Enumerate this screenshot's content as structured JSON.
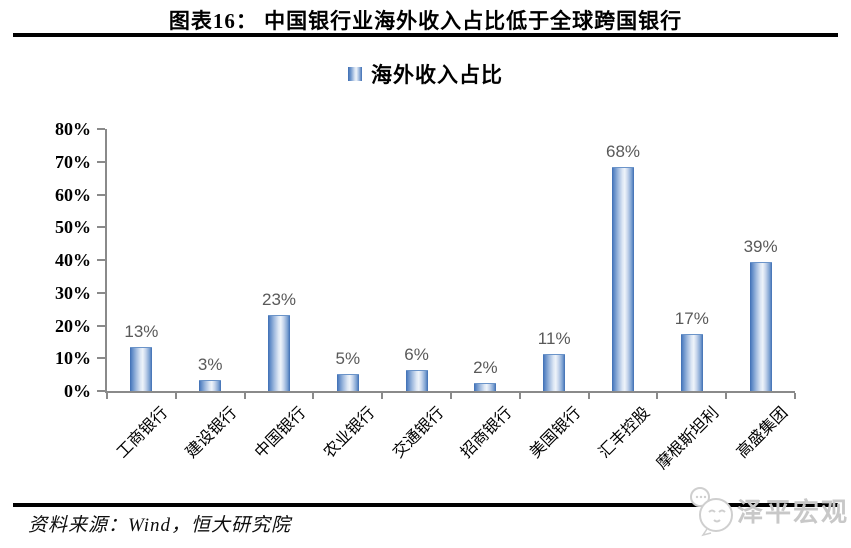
{
  "header": {
    "title": "图表16： 中国银行业海外收入占比低于全球跨国银行"
  },
  "chart_data": {
    "type": "bar",
    "title": "海外收入占比",
    "legend": [
      "海外收入占比"
    ],
    "legend_position": "top",
    "categories": [
      "工商银行",
      "建设银行",
      "中国银行",
      "农业银行",
      "交通银行",
      "招商银行",
      "美国银行",
      "汇丰控股",
      "摩根斯坦利",
      "高盛集团"
    ],
    "values": [
      13,
      3,
      23,
      5,
      6,
      2,
      11,
      68,
      17,
      39
    ],
    "data_labels": [
      "13%",
      "3%",
      "23%",
      "5%",
      "6%",
      "2%",
      "11%",
      "68%",
      "17%",
      "39%"
    ],
    "unit": "%",
    "xlabel": "",
    "ylabel": "",
    "ylim": [
      0,
      80
    ],
    "ytick_step": 10,
    "ytick_labels": [
      "0%",
      "10%",
      "20%",
      "30%",
      "40%",
      "50%",
      "60%",
      "70%",
      "80%"
    ],
    "grid": false,
    "colors": {
      "bar_edge": "#3e6eb3",
      "bar_center": "#eef3fa",
      "axis": "#8a8a8a",
      "value_label": "#595959",
      "rule": "#000000"
    }
  },
  "footer": {
    "source": "资料来源：Wind，恒大研究院",
    "watermark": "泽平宏观"
  }
}
